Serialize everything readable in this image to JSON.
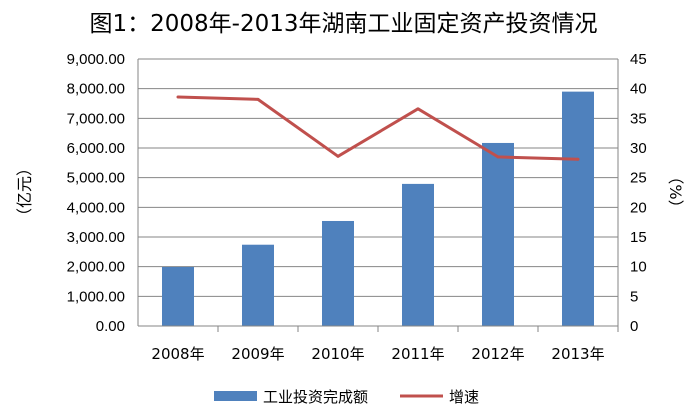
{
  "chart_data": {
    "type": "bar+line",
    "title": "图1：2008年-2013年湖南工业固定资产投资情况",
    "categories": [
      "2008年",
      "2009年",
      "2010年",
      "2011年",
      "2012年",
      "2013年"
    ],
    "series": [
      {
        "name": "工业投资完成额",
        "type": "bar",
        "axis": "left",
        "values": [
          1990,
          2740,
          3540,
          4790,
          6170,
          7900
        ],
        "color": "#4f81bd"
      },
      {
        "name": "增速",
        "type": "line",
        "axis": "right",
        "values": [
          38.6,
          38.2,
          28.6,
          36.6,
          28.5,
          28.1
        ],
        "color": "#c0504d"
      }
    ],
    "ylabel_left": "（亿元）",
    "ylabel_right": "（%）",
    "ylim_left": [
      0,
      9000
    ],
    "ylim_right": [
      0,
      45
    ],
    "yticks_left": [
      "0.00",
      "1,000.00",
      "2,000.00",
      "3,000.00",
      "4,000.00",
      "5,000.00",
      "6,000.00",
      "7,000.00",
      "8,000.00",
      "9,000.00"
    ],
    "yticks_right": [
      "0",
      "5",
      "10",
      "15",
      "20",
      "25",
      "30",
      "35",
      "40",
      "45"
    ],
    "grid": true,
    "legend_position": "bottom"
  }
}
